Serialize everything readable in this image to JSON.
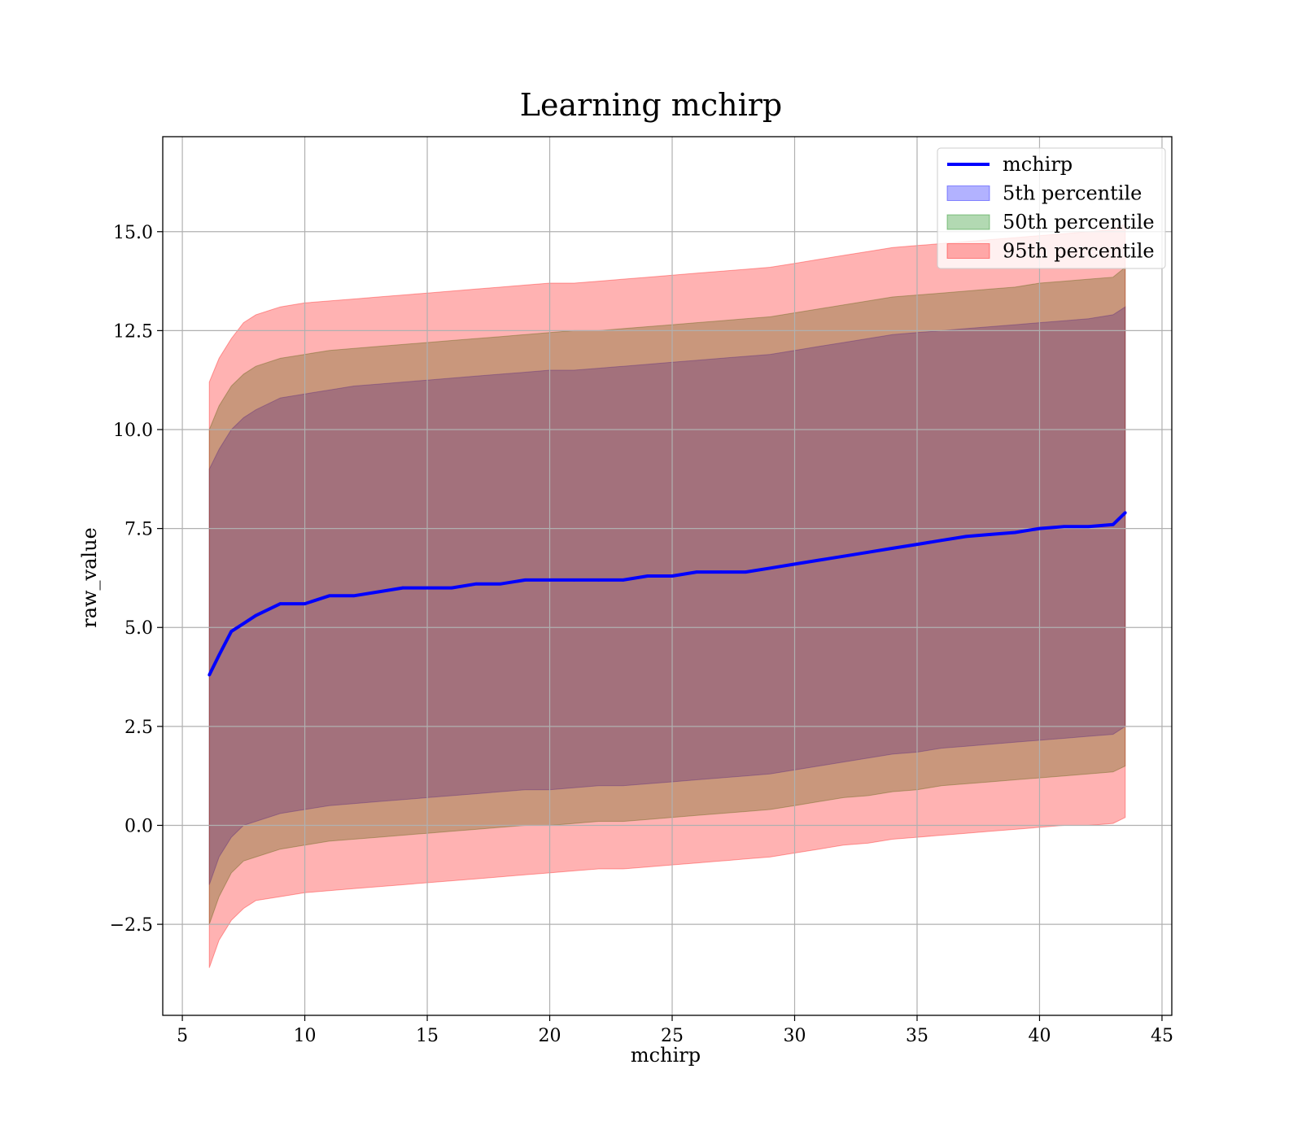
{
  "chart_data": {
    "type": "area",
    "title": "Learning mchirp",
    "xlabel": "mchirp",
    "ylabel": "raw_value",
    "xlim": [
      4.2,
      45.4
    ],
    "ylim": [
      -4.8,
      17.4
    ],
    "xticks": [
      5,
      10,
      15,
      20,
      25,
      30,
      35,
      40,
      45
    ],
    "yticks": [
      -2.5,
      0.0,
      2.5,
      5.0,
      7.5,
      10.0,
      12.5,
      15.0
    ],
    "ytick_labels": [
      "−2.5",
      "0.0",
      "2.5",
      "5.0",
      "7.5",
      "10.0",
      "12.5",
      "15.0"
    ],
    "grid": true,
    "legend_position": "top-right",
    "x": [
      6.1,
      6.5,
      7.0,
      7.5,
      8.0,
      9.0,
      10.0,
      11.0,
      12.0,
      13.0,
      14.0,
      15.0,
      16.0,
      17.0,
      18.0,
      19.0,
      20.0,
      21.0,
      22.0,
      23.0,
      24.0,
      25.0,
      26.0,
      27.0,
      28.0,
      29.0,
      30.0,
      31.0,
      32.0,
      33.0,
      34.0,
      35.0,
      36.0,
      37.0,
      38.0,
      39.0,
      40.0,
      41.0,
      42.0,
      43.0,
      43.5
    ],
    "series": [
      {
        "name": "mchirp",
        "kind": "line",
        "color": "#0000ff",
        "values": [
          3.8,
          4.3,
          4.9,
          5.1,
          5.3,
          5.6,
          5.6,
          5.8,
          5.8,
          5.9,
          6.0,
          6.0,
          6.0,
          6.1,
          6.1,
          6.2,
          6.2,
          6.2,
          6.2,
          6.2,
          6.3,
          6.3,
          6.4,
          6.4,
          6.4,
          6.5,
          6.6,
          6.7,
          6.8,
          6.9,
          7.0,
          7.1,
          7.2,
          7.3,
          7.35,
          7.4,
          7.5,
          7.55,
          7.55,
          7.6,
          7.9
        ]
      },
      {
        "name": "5th percentile",
        "kind": "band",
        "color": "#0000ff",
        "lower": [
          -1.5,
          -0.8,
          -0.3,
          0.0,
          0.1,
          0.3,
          0.4,
          0.5,
          0.55,
          0.6,
          0.65,
          0.7,
          0.75,
          0.8,
          0.85,
          0.9,
          0.9,
          0.95,
          1.0,
          1.0,
          1.05,
          1.1,
          1.15,
          1.2,
          1.25,
          1.3,
          1.4,
          1.5,
          1.6,
          1.7,
          1.8,
          1.85,
          1.95,
          2.0,
          2.05,
          2.1,
          2.15,
          2.2,
          2.25,
          2.3,
          2.5
        ],
        "upper": [
          9.0,
          9.5,
          10.0,
          10.3,
          10.5,
          10.8,
          10.9,
          11.0,
          11.1,
          11.15,
          11.2,
          11.25,
          11.3,
          11.35,
          11.4,
          11.45,
          11.5,
          11.5,
          11.55,
          11.6,
          11.65,
          11.7,
          11.75,
          11.8,
          11.85,
          11.9,
          12.0,
          12.1,
          12.2,
          12.3,
          12.4,
          12.45,
          12.5,
          12.55,
          12.6,
          12.65,
          12.7,
          12.75,
          12.8,
          12.9,
          13.1
        ]
      },
      {
        "name": "50th percentile",
        "kind": "band",
        "color": "#008000",
        "lower": [
          -2.5,
          -1.8,
          -1.2,
          -0.9,
          -0.8,
          -0.6,
          -0.5,
          -0.4,
          -0.35,
          -0.3,
          -0.25,
          -0.2,
          -0.15,
          -0.1,
          -0.05,
          0.0,
          0.0,
          0.05,
          0.1,
          0.1,
          0.15,
          0.2,
          0.25,
          0.3,
          0.35,
          0.4,
          0.5,
          0.6,
          0.7,
          0.75,
          0.85,
          0.9,
          1.0,
          1.05,
          1.1,
          1.15,
          1.2,
          1.25,
          1.3,
          1.35,
          1.5
        ],
        "upper": [
          10.0,
          10.6,
          11.1,
          11.4,
          11.6,
          11.8,
          11.9,
          12.0,
          12.05,
          12.1,
          12.15,
          12.2,
          12.25,
          12.3,
          12.35,
          12.4,
          12.45,
          12.5,
          12.5,
          12.55,
          12.6,
          12.65,
          12.7,
          12.75,
          12.8,
          12.85,
          12.95,
          13.05,
          13.15,
          13.25,
          13.35,
          13.4,
          13.45,
          13.5,
          13.55,
          13.6,
          13.7,
          13.75,
          13.8,
          13.85,
          14.1
        ]
      },
      {
        "name": "95th percentile",
        "kind": "band",
        "color": "#ff0000",
        "lower": [
          -3.6,
          -2.9,
          -2.4,
          -2.1,
          -1.9,
          -1.8,
          -1.7,
          -1.65,
          -1.6,
          -1.55,
          -1.5,
          -1.45,
          -1.4,
          -1.35,
          -1.3,
          -1.25,
          -1.2,
          -1.15,
          -1.1,
          -1.1,
          -1.05,
          -1.0,
          -0.95,
          -0.9,
          -0.85,
          -0.8,
          -0.7,
          -0.6,
          -0.5,
          -0.45,
          -0.35,
          -0.3,
          -0.25,
          -0.2,
          -0.15,
          -0.1,
          -0.05,
          0.0,
          0.0,
          0.05,
          0.2
        ],
        "upper": [
          11.2,
          11.8,
          12.3,
          12.7,
          12.9,
          13.1,
          13.2,
          13.25,
          13.3,
          13.35,
          13.4,
          13.45,
          13.5,
          13.55,
          13.6,
          13.65,
          13.7,
          13.7,
          13.75,
          13.8,
          13.85,
          13.9,
          13.95,
          14.0,
          14.05,
          14.1,
          14.2,
          14.3,
          14.4,
          14.5,
          14.6,
          14.65,
          14.7,
          14.75,
          14.8,
          14.85,
          14.9,
          14.95,
          15.0,
          15.05,
          15.2
        ]
      }
    ]
  }
}
